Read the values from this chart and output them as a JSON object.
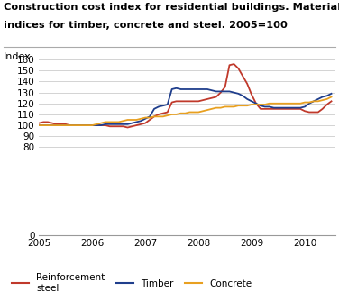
{
  "title_line1": "Construction cost index for residential buildings. Material",
  "title_line2": "indices for timber, concrete and steel. 2005=100",
  "ylabel": "Index",
  "ylim": [
    0,
    165
  ],
  "yticks": [
    0,
    80,
    90,
    100,
    110,
    120,
    130,
    140,
    150,
    160
  ],
  "xticks": [
    2005,
    2006,
    2007,
    2008,
    2009,
    2010
  ],
  "xlim": [
    2005,
    2010.58
  ],
  "background_color": "#ffffff",
  "grid_color": "#cccccc",
  "reinforcement_color": "#c0392b",
  "timber_color": "#1f3e8c",
  "concrete_color": "#e8a020",
  "legend_labels": [
    "Reinforcement\nsteel",
    "Timber",
    "Concrete"
  ],
  "reinforcement_x": [
    2005.0,
    2005.083,
    2005.167,
    2005.25,
    2005.333,
    2005.417,
    2005.5,
    2005.583,
    2005.667,
    2005.75,
    2005.833,
    2005.917,
    2006.0,
    2006.083,
    2006.167,
    2006.25,
    2006.333,
    2006.417,
    2006.5,
    2006.583,
    2006.667,
    2006.75,
    2006.833,
    2006.917,
    2007.0,
    2007.083,
    2007.167,
    2007.25,
    2007.333,
    2007.417,
    2007.5,
    2007.583,
    2007.667,
    2007.75,
    2007.833,
    2007.917,
    2008.0,
    2008.083,
    2008.167,
    2008.25,
    2008.333,
    2008.417,
    2008.5,
    2008.583,
    2008.667,
    2008.75,
    2008.833,
    2008.917,
    2009.0,
    2009.083,
    2009.167,
    2009.25,
    2009.333,
    2009.417,
    2009.5,
    2009.583,
    2009.667,
    2009.75,
    2009.833,
    2009.917,
    2010.0,
    2010.083,
    2010.167,
    2010.25,
    2010.333,
    2010.417,
    2010.5
  ],
  "reinforcement_y": [
    102,
    103,
    103,
    102,
    101,
    101,
    101,
    100,
    100,
    100,
    100,
    100,
    100,
    100,
    100,
    100,
    99,
    99,
    99,
    99,
    98,
    99,
    100,
    101,
    102,
    105,
    108,
    110,
    111,
    112,
    121,
    122,
    122,
    122,
    122,
    122,
    122,
    123,
    124,
    125,
    126,
    130,
    135,
    155,
    156,
    152,
    145,
    138,
    128,
    120,
    115,
    115,
    115,
    115,
    115,
    115,
    115,
    115,
    115,
    115,
    113,
    112,
    112,
    112,
    115,
    119,
    122
  ],
  "timber_x": [
    2005.0,
    2005.083,
    2005.167,
    2005.25,
    2005.333,
    2005.417,
    2005.5,
    2005.583,
    2005.667,
    2005.75,
    2005.833,
    2005.917,
    2006.0,
    2006.083,
    2006.167,
    2006.25,
    2006.333,
    2006.417,
    2006.5,
    2006.583,
    2006.667,
    2006.75,
    2006.833,
    2006.917,
    2007.0,
    2007.083,
    2007.167,
    2007.25,
    2007.333,
    2007.417,
    2007.5,
    2007.583,
    2007.667,
    2007.75,
    2007.833,
    2007.917,
    2008.0,
    2008.083,
    2008.167,
    2008.25,
    2008.333,
    2008.417,
    2008.5,
    2008.583,
    2008.667,
    2008.75,
    2008.833,
    2008.917,
    2009.0,
    2009.083,
    2009.167,
    2009.25,
    2009.333,
    2009.417,
    2009.5,
    2009.583,
    2009.667,
    2009.75,
    2009.833,
    2009.917,
    2010.0,
    2010.083,
    2010.167,
    2010.25,
    2010.333,
    2010.417,
    2010.5
  ],
  "timber_y": [
    100,
    100,
    100,
    100,
    100,
    100,
    100,
    100,
    100,
    100,
    100,
    100,
    100,
    100,
    100,
    101,
    101,
    101,
    101,
    101,
    101,
    102,
    103,
    104,
    106,
    108,
    115,
    117,
    118,
    119,
    133,
    134,
    133,
    133,
    133,
    133,
    133,
    133,
    133,
    132,
    131,
    131,
    131,
    131,
    130,
    129,
    127,
    124,
    122,
    120,
    118,
    117,
    117,
    116,
    116,
    116,
    116,
    116,
    116,
    116,
    117,
    120,
    122,
    124,
    126,
    127,
    129
  ],
  "concrete_x": [
    2005.0,
    2005.083,
    2005.167,
    2005.25,
    2005.333,
    2005.417,
    2005.5,
    2005.583,
    2005.667,
    2005.75,
    2005.833,
    2005.917,
    2006.0,
    2006.083,
    2006.167,
    2006.25,
    2006.333,
    2006.417,
    2006.5,
    2006.583,
    2006.667,
    2006.75,
    2006.833,
    2006.917,
    2007.0,
    2007.083,
    2007.167,
    2007.25,
    2007.333,
    2007.417,
    2007.5,
    2007.583,
    2007.667,
    2007.75,
    2007.833,
    2007.917,
    2008.0,
    2008.083,
    2008.167,
    2008.25,
    2008.333,
    2008.417,
    2008.5,
    2008.583,
    2008.667,
    2008.75,
    2008.833,
    2008.917,
    2009.0,
    2009.083,
    2009.167,
    2009.25,
    2009.333,
    2009.417,
    2009.5,
    2009.583,
    2009.667,
    2009.75,
    2009.833,
    2009.917,
    2010.0,
    2010.083,
    2010.167,
    2010.25,
    2010.333,
    2010.417,
    2010.5
  ],
  "concrete_y": [
    100,
    100,
    100,
    100,
    100,
    100,
    100,
    100,
    100,
    100,
    100,
    100,
    100,
    101,
    102,
    103,
    103,
    103,
    103,
    104,
    105,
    105,
    105,
    106,
    107,
    107,
    108,
    108,
    108,
    109,
    110,
    110,
    111,
    111,
    112,
    112,
    112,
    113,
    114,
    115,
    116,
    116,
    117,
    117,
    117,
    118,
    118,
    118,
    119,
    119,
    119,
    119,
    120,
    120,
    120,
    120,
    120,
    120,
    120,
    120,
    121,
    121,
    122,
    122,
    123,
    124,
    126
  ]
}
